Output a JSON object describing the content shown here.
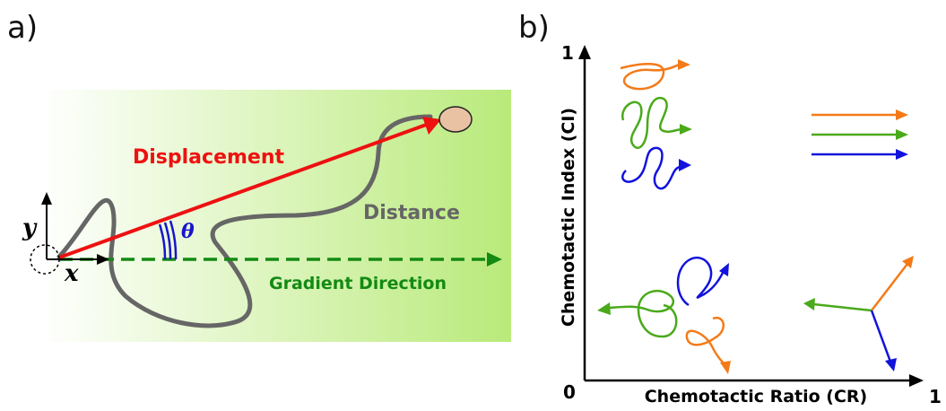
{
  "panel_a": {
    "letter": "a)",
    "labels": {
      "displacement": "Displacement",
      "distance": "Distance",
      "gradient_direction": "Gradient Direction",
      "theta": "θ",
      "axis_x": "x",
      "axis_y": "y"
    },
    "colors": {
      "gradient_start": "#ffffff",
      "gradient_end": "#b9ea7a",
      "displacement": "#ee1111",
      "distance": "#666666",
      "gradient_direction": "#138a13",
      "theta": "#1616cc",
      "cell": "#e9c1a3"
    }
  },
  "panel_b": {
    "letter": "b)",
    "x_axis_label": "Chemotactic Ratio (CR)",
    "y_axis_label": "Chemotactic Index (CI)",
    "origin_label": "0",
    "x_max_label": "1",
    "y_max_label": "1",
    "colors": {
      "orange": "#f47a18",
      "green": "#4aaa1a",
      "blue": "#1212dd"
    }
  }
}
